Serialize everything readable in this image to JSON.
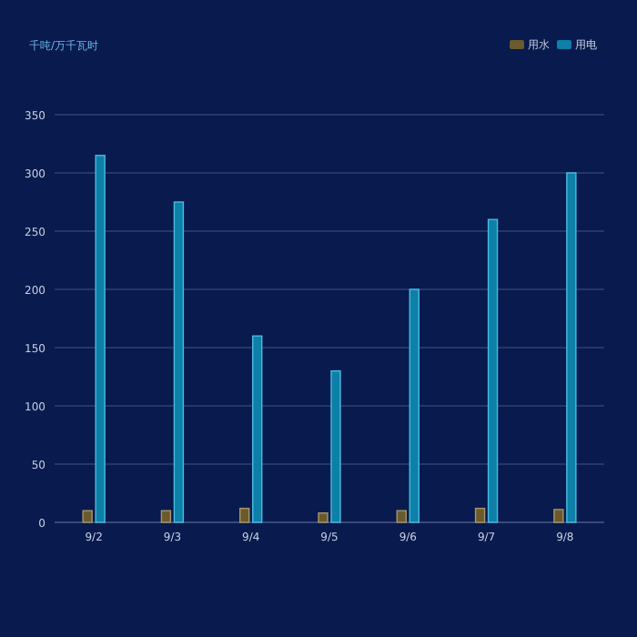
{
  "chart_data": {
    "type": "bar",
    "annotations": [
      "千吨/万千瓦时"
    ],
    "categories": [
      "9/2",
      "9/3",
      "9/4",
      "9/5",
      "9/6",
      "9/7",
      "9/8"
    ],
    "series": [
      {
        "name": "用水",
        "color": "#6b5a2e",
        "values": [
          10,
          10,
          12,
          8,
          10,
          12,
          11
        ]
      },
      {
        "name": "用电",
        "color": "#0e7fa6",
        "values": [
          315,
          275,
          160,
          130,
          200,
          260,
          300
        ]
      }
    ],
    "ylim": [
      0,
      350
    ],
    "yticks": [
      0,
      50,
      100,
      150,
      200,
      250,
      300,
      350
    ],
    "grid": "y",
    "legend": "top right"
  }
}
